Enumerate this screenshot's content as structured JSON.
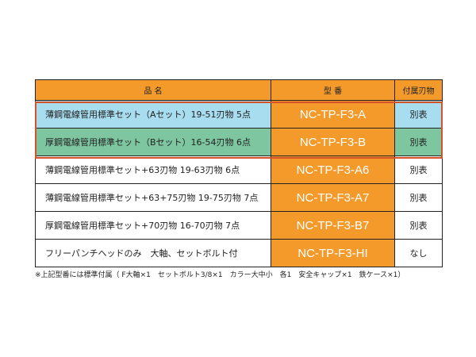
{
  "headers": [
    "品 名",
    "型 番",
    "付属刃物"
  ],
  "rows": [
    {
      "name": "薄鋼電線管用標準セット（Aセット）19-51刃物 5点",
      "model": "NC-TP-F3-A",
      "blades": "別表",
      "color": "#a8dcef"
    },
    {
      "name": "厚鋼電線管用標準セット（Bセット）16-54刃物 6点",
      "model": "NC-TP-F3-B",
      "blades": "別表",
      "color": "#7ec6a0"
    },
    {
      "name": "薄鋼電線管用標準セット+63刃物 19-63刃物 6点",
      "model": "NC-TP-F3-A6",
      "blades": "別表"
    },
    {
      "name": "薄鋼電線管用標準セット+63+75刃物 19-75刃物 7点",
      "model": "NC-TP-F3-A7",
      "blades": "別表"
    },
    {
      "name": "厚鋼電線管用標準セット+70刃物 16-70刃物 7点",
      "model": "NC-TP-F3-B7",
      "blades": "別表"
    },
    {
      "name": "フリーパンチヘッドのみ　大軸、セットボルト付",
      "model": "NC-TP-F3-HI",
      "blades": "なし"
    }
  ],
  "note": "※上記型番には標準付属（ F大軸×1　セットボルト3/8×1　カラー大中小　各1　安全キャップ×1　鉄ケース×1）",
  "colors": {
    "header": "#f39a2b",
    "highlight_border": "#d6532a"
  }
}
